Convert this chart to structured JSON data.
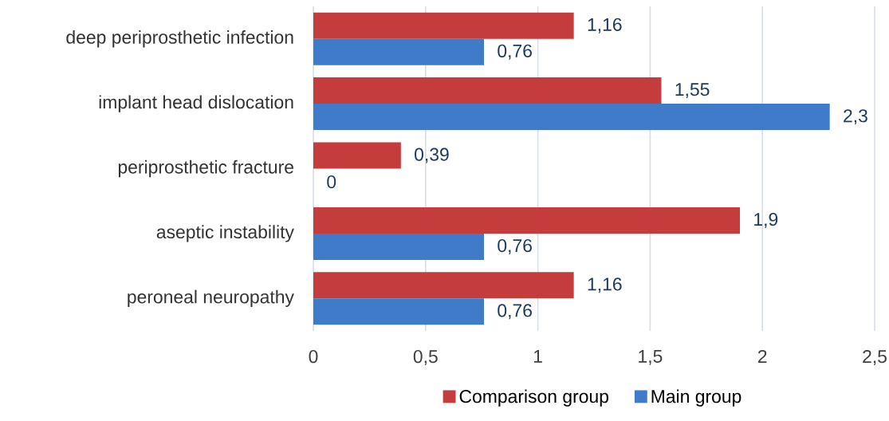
{
  "chart_data": {
    "type": "bar",
    "orientation": "horizontal",
    "categories": [
      "deep periprosthetic infection",
      "implant head dislocation",
      "periprosthetic fracture",
      "aseptic instability",
      "peroneal neuropathy"
    ],
    "series": [
      {
        "name": "Comparison group",
        "color": "#c43c3c",
        "values": [
          1.16,
          1.55,
          0.39,
          1.9,
          1.16
        ],
        "value_labels": [
          "1,16",
          "1,55",
          "0,39",
          "1,9",
          "1,16"
        ]
      },
      {
        "name": "Main group",
        "color": "#3f7bc8",
        "values": [
          0.76,
          2.3,
          0,
          0.76,
          0.76
        ],
        "value_labels": [
          "0,76",
          "2,3",
          "0",
          "0,76",
          "0,76"
        ]
      }
    ],
    "xlim": [
      0,
      2.5
    ],
    "xticks": [
      0,
      {
        "value": 0.5,
        "label": "0,5"
      },
      1,
      {
        "value": 1.5,
        "label": "1,5"
      },
      2,
      {
        "value": 2.5,
        "label": "2,5"
      }
    ],
    "grid": "x",
    "legend": "bottom"
  }
}
